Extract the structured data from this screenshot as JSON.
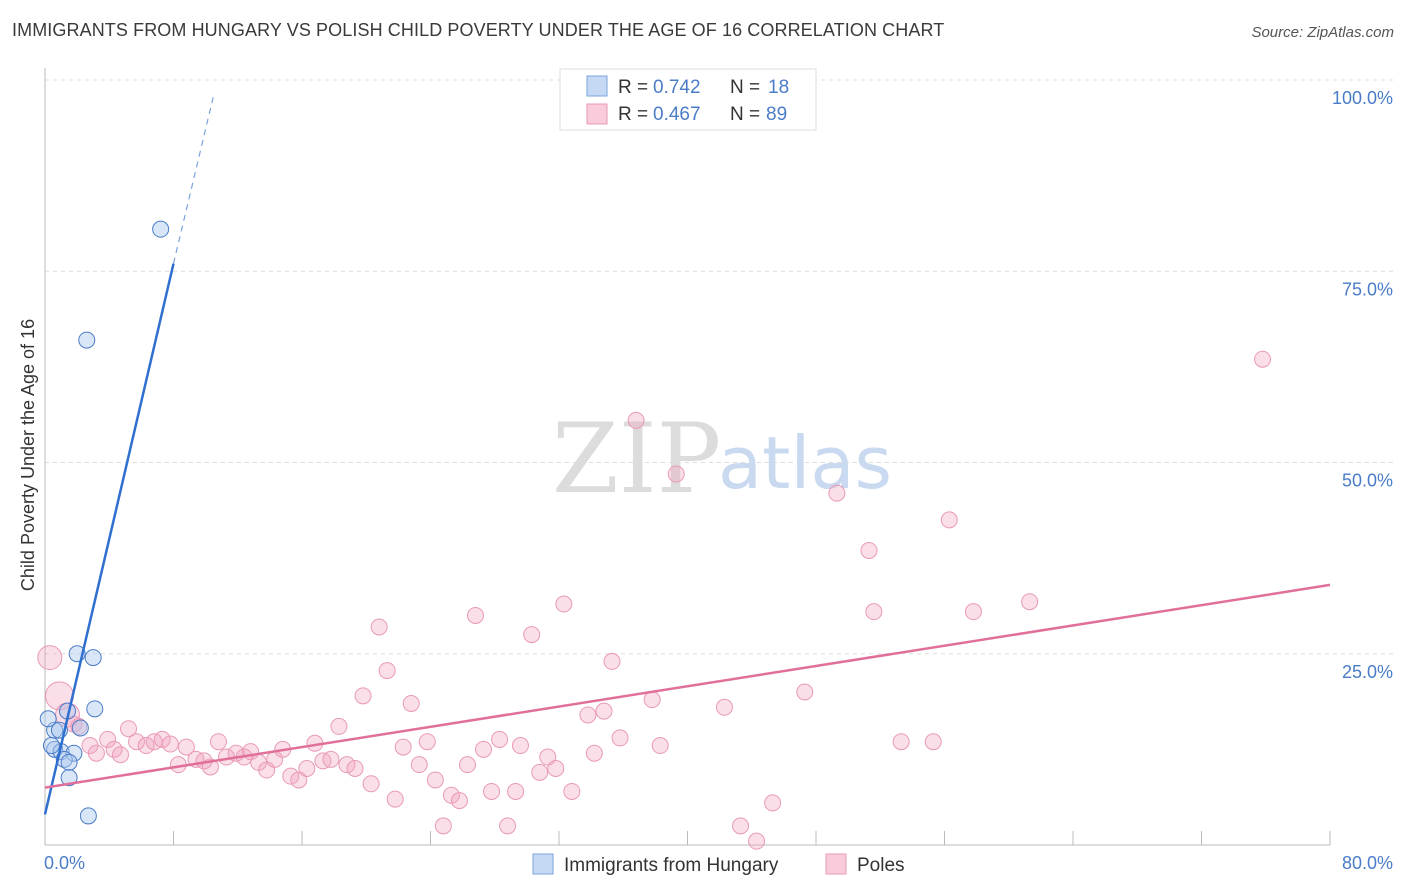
{
  "title": "IMMIGRANTS FROM HUNGARY VS POLISH CHILD POVERTY UNDER THE AGE OF 16 CORRELATION CHART",
  "source": "Source: ZipAtlas.com",
  "watermark": {
    "zip": "ZIP",
    "atlas": "atlas"
  },
  "chart_data": {
    "type": "scatter",
    "title": "IMMIGRANTS FROM HUNGARY VS POLISH CHILD POVERTY UNDER THE AGE OF 16 CORRELATION CHART",
    "xlabel": "",
    "ylabel": "Child Poverty Under the Age of 16",
    "xlim": [
      0,
      80
    ],
    "ylim": [
      0,
      100
    ],
    "x_tick_labels": [
      "0.0%",
      "80.0%"
    ],
    "y_tick_labels": [
      "100.0%",
      "75.0%",
      "50.0%",
      "25.0%"
    ],
    "y_tick_values": [
      100,
      75,
      50,
      25
    ],
    "legend_position": "top-center",
    "colors": {
      "hungary": "#4a7cc7",
      "poles": "#e06f9a"
    },
    "stats": [
      {
        "r_label": "R =",
        "r_value": "0.742",
        "n_label": "N =",
        "n_value": "18"
      },
      {
        "r_label": "R =",
        "r_value": "0.467",
        "n_label": "N =",
        "n_value": "89"
      }
    ],
    "series": [
      {
        "name": "Immigrants from Hungary",
        "trendline": {
          "x": [
            0.0,
            8.0
          ],
          "y": [
            4.0,
            76.0
          ],
          "dashed_to": [
            10.5,
            98.0
          ]
        },
        "points": [
          {
            "x": 7.2,
            "y": 80.5
          },
          {
            "x": 2.6,
            "y": 66.0
          },
          {
            "x": 2.0,
            "y": 25.0
          },
          {
            "x": 3.0,
            "y": 24.5
          },
          {
            "x": 1.4,
            "y": 17.5
          },
          {
            "x": 3.1,
            "y": 17.8
          },
          {
            "x": 0.6,
            "y": 15.0
          },
          {
            "x": 0.9,
            "y": 15.0
          },
          {
            "x": 2.2,
            "y": 15.3
          },
          {
            "x": 0.6,
            "y": 12.5
          },
          {
            "x": 1.0,
            "y": 12.2
          },
          {
            "x": 1.8,
            "y": 12.0
          },
          {
            "x": 1.2,
            "y": 11.2
          },
          {
            "x": 1.5,
            "y": 10.8
          },
          {
            "x": 1.5,
            "y": 8.8
          },
          {
            "x": 2.7,
            "y": 3.8
          },
          {
            "x": 0.2,
            "y": 16.5
          },
          {
            "x": 0.4,
            "y": 13.0
          }
        ]
      },
      {
        "name": "Poles",
        "trendline": {
          "x": [
            0.0,
            80.0
          ],
          "y": [
            7.5,
            34.0
          ]
        },
        "points": [
          {
            "x": 0.3,
            "y": 24.5
          },
          {
            "x": 0.9,
            "y": 19.5
          },
          {
            "x": 1.4,
            "y": 17.0
          },
          {
            "x": 2.1,
            "y": 15.5
          },
          {
            "x": 2.8,
            "y": 13.0
          },
          {
            "x": 3.2,
            "y": 12.0
          },
          {
            "x": 3.9,
            "y": 13.8
          },
          {
            "x": 4.3,
            "y": 12.5
          },
          {
            "x": 4.7,
            "y": 11.8
          },
          {
            "x": 5.2,
            "y": 15.2
          },
          {
            "x": 5.7,
            "y": 13.5
          },
          {
            "x": 6.3,
            "y": 13.0
          },
          {
            "x": 6.8,
            "y": 13.5
          },
          {
            "x": 7.3,
            "y": 13.8
          },
          {
            "x": 7.8,
            "y": 13.2
          },
          {
            "x": 8.3,
            "y": 10.5
          },
          {
            "x": 8.8,
            "y": 12.8
          },
          {
            "x": 9.4,
            "y": 11.2
          },
          {
            "x": 9.9,
            "y": 11.0
          },
          {
            "x": 10.3,
            "y": 10.2
          },
          {
            "x": 10.8,
            "y": 13.5
          },
          {
            "x": 11.3,
            "y": 11.5
          },
          {
            "x": 11.9,
            "y": 12.0
          },
          {
            "x": 12.4,
            "y": 11.5
          },
          {
            "x": 12.8,
            "y": 12.2
          },
          {
            "x": 13.3,
            "y": 10.8
          },
          {
            "x": 13.8,
            "y": 9.8
          },
          {
            "x": 14.3,
            "y": 11.2
          },
          {
            "x": 14.8,
            "y": 12.5
          },
          {
            "x": 15.3,
            "y": 9.0
          },
          {
            "x": 15.8,
            "y": 8.5
          },
          {
            "x": 16.3,
            "y": 10.0
          },
          {
            "x": 16.8,
            "y": 13.3
          },
          {
            "x": 17.3,
            "y": 11.0
          },
          {
            "x": 17.8,
            "y": 11.2
          },
          {
            "x": 18.3,
            "y": 15.5
          },
          {
            "x": 18.8,
            "y": 10.5
          },
          {
            "x": 19.3,
            "y": 10.0
          },
          {
            "x": 19.8,
            "y": 19.5
          },
          {
            "x": 20.3,
            "y": 8.0
          },
          {
            "x": 20.8,
            "y": 28.5
          },
          {
            "x": 21.3,
            "y": 22.8
          },
          {
            "x": 21.8,
            "y": 6.0
          },
          {
            "x": 22.3,
            "y": 12.8
          },
          {
            "x": 22.8,
            "y": 18.5
          },
          {
            "x": 23.3,
            "y": 10.5
          },
          {
            "x": 23.8,
            "y": 13.5
          },
          {
            "x": 24.3,
            "y": 8.5
          },
          {
            "x": 24.8,
            "y": 2.5
          },
          {
            "x": 25.3,
            "y": 6.5
          },
          {
            "x": 25.8,
            "y": 5.8
          },
          {
            "x": 26.3,
            "y": 10.5
          },
          {
            "x": 26.8,
            "y": 30.0
          },
          {
            "x": 27.3,
            "y": 12.5
          },
          {
            "x": 27.8,
            "y": 7.0
          },
          {
            "x": 28.3,
            "y": 13.8
          },
          {
            "x": 28.8,
            "y": 2.5
          },
          {
            "x": 29.3,
            "y": 7.0
          },
          {
            "x": 29.6,
            "y": 13.0
          },
          {
            "x": 30.3,
            "y": 27.5
          },
          {
            "x": 30.8,
            "y": 9.5
          },
          {
            "x": 31.3,
            "y": 11.5
          },
          {
            "x": 31.8,
            "y": 10.0
          },
          {
            "x": 32.3,
            "y": 31.5
          },
          {
            "x": 32.8,
            "y": 7.0
          },
          {
            "x": 33.8,
            "y": 17.0
          },
          {
            "x": 34.2,
            "y": 12.0
          },
          {
            "x": 34.8,
            "y": 17.5
          },
          {
            "x": 35.3,
            "y": 24.0
          },
          {
            "x": 35.8,
            "y": 14.0
          },
          {
            "x": 36.8,
            "y": 55.5
          },
          {
            "x": 37.8,
            "y": 19.0
          },
          {
            "x": 38.3,
            "y": 13.0
          },
          {
            "x": 39.3,
            "y": 48.5
          },
          {
            "x": 42.3,
            "y": 18.0
          },
          {
            "x": 43.3,
            "y": 2.5
          },
          {
            "x": 44.3,
            "y": 0.5
          },
          {
            "x": 45.3,
            "y": 5.5
          },
          {
            "x": 47.3,
            "y": 20.0
          },
          {
            "x": 49.3,
            "y": 46.0
          },
          {
            "x": 51.3,
            "y": 38.5
          },
          {
            "x": 51.6,
            "y": 30.5
          },
          {
            "x": 53.3,
            "y": 13.5
          },
          {
            "x": 55.3,
            "y": 13.5
          },
          {
            "x": 56.3,
            "y": 42.5
          },
          {
            "x": 57.8,
            "y": 30.5
          },
          {
            "x": 61.3,
            "y": 31.8
          },
          {
            "x": 75.8,
            "y": 63.5
          },
          {
            "x": 1.8,
            "y": 15.8
          }
        ]
      }
    ]
  }
}
